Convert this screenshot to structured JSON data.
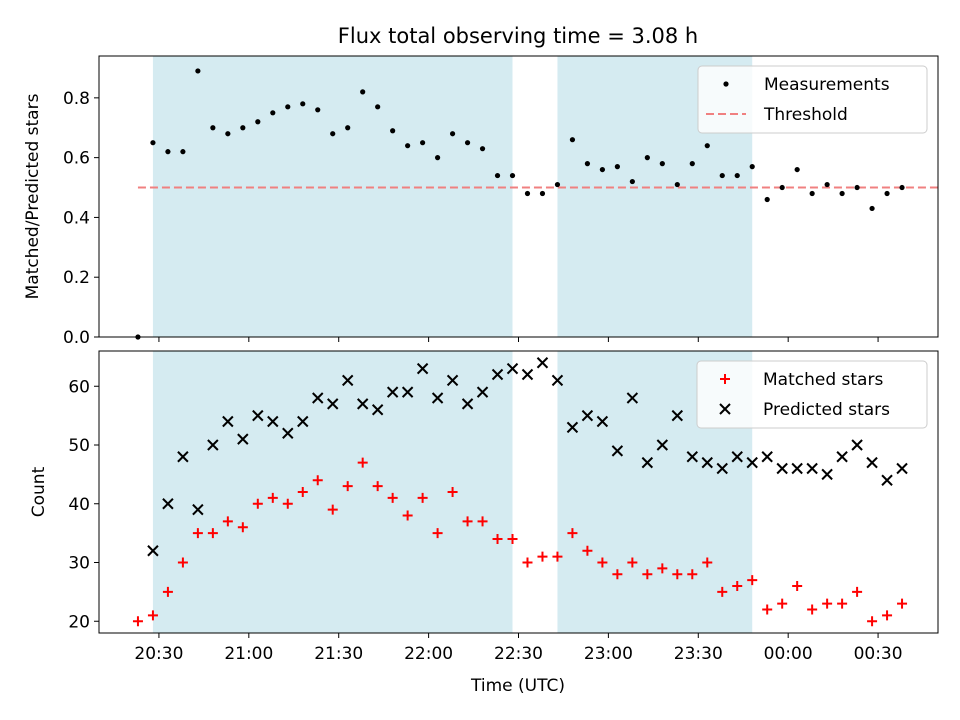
{
  "title": "Flux total observing time = 3.08 h",
  "xlabel": "Time (UTC)",
  "x_ticks": [
    "20:30",
    "21:00",
    "21:30",
    "22:00",
    "22:30",
    "23:00",
    "23:30",
    "00:00",
    "00:30"
  ],
  "colors": {
    "shade": "#d5ebf1",
    "threshold": "#f08080",
    "matched": "#ff0000",
    "predicted": "#000000",
    "points": "#000000"
  },
  "chart_data": [
    {
      "type": "scatter",
      "ylabel": "Matched/Predicted stars",
      "ylim": [
        0,
        0.94
      ],
      "yticks": [
        "0.0",
        "0.2",
        "0.4",
        "0.6",
        "0.8"
      ],
      "xlim": [
        "20:10",
        "24:50"
      ],
      "shaded_intervals": [
        [
          "20:28",
          "22:28"
        ],
        [
          "22:43",
          "23:48"
        ]
      ],
      "threshold": 0.5,
      "legend": {
        "position": "top-right",
        "entries": [
          "Measurements",
          "Threshold"
        ]
      },
      "series": [
        {
          "name": "Measurements",
          "x": [
            "20:23",
            "20:28",
            "20:33",
            "20:38",
            "20:43",
            "20:48",
            "20:53",
            "20:58",
            "21:03",
            "21:08",
            "21:13",
            "21:18",
            "21:23",
            "21:28",
            "21:33",
            "21:38",
            "21:43",
            "21:48",
            "21:53",
            "21:58",
            "22:03",
            "22:08",
            "22:13",
            "22:18",
            "22:23",
            "22:28",
            "22:33",
            "22:38",
            "22:43",
            "22:48",
            "22:53",
            "22:58",
            "23:03",
            "23:08",
            "23:13",
            "23:18",
            "23:23",
            "23:28",
            "23:33",
            "23:38",
            "23:43",
            "23:48",
            "23:53",
            "23:58",
            "24:03",
            "24:08",
            "24:13",
            "24:18",
            "24:23",
            "24:28",
            "24:33",
            "24:38"
          ],
          "y": [
            0.0,
            0.65,
            0.62,
            0.62,
            0.89,
            0.7,
            0.68,
            0.7,
            0.72,
            0.75,
            0.77,
            0.78,
            0.76,
            0.68,
            0.7,
            0.82,
            0.77,
            0.69,
            0.64,
            0.65,
            0.6,
            0.68,
            0.65,
            0.63,
            0.54,
            0.54,
            0.48,
            0.48,
            0.51,
            0.66,
            0.58,
            0.56,
            0.57,
            0.52,
            0.6,
            0.58,
            0.51,
            0.58,
            0.64,
            0.54,
            0.54,
            0.57,
            0.46,
            0.5,
            0.56,
            0.48,
            0.51,
            0.48,
            0.5,
            0.43,
            0.48,
            0.5
          ]
        }
      ]
    },
    {
      "type": "scatter",
      "ylabel": "Count",
      "ylim": [
        18,
        66
      ],
      "yticks": [
        "20",
        "30",
        "40",
        "50",
        "60"
      ],
      "xlim": [
        "20:10",
        "24:50"
      ],
      "shaded_intervals": [
        [
          "20:28",
          "22:28"
        ],
        [
          "22:43",
          "23:48"
        ]
      ],
      "legend": {
        "position": "top-right",
        "entries": [
          "Matched stars",
          "Predicted stars"
        ]
      },
      "series": [
        {
          "name": "Matched stars",
          "marker": "+",
          "x": [
            "20:23",
            "20:28",
            "20:33",
            "20:38",
            "20:43",
            "20:48",
            "20:53",
            "20:58",
            "21:03",
            "21:08",
            "21:13",
            "21:18",
            "21:23",
            "21:28",
            "21:33",
            "21:38",
            "21:43",
            "21:48",
            "21:53",
            "21:58",
            "22:03",
            "22:08",
            "22:13",
            "22:18",
            "22:23",
            "22:28",
            "22:33",
            "22:38",
            "22:43",
            "22:48",
            "22:53",
            "22:58",
            "23:03",
            "23:08",
            "23:13",
            "23:18",
            "23:23",
            "23:28",
            "23:33",
            "23:38",
            "23:43",
            "23:48",
            "23:53",
            "23:58",
            "24:03",
            "24:08",
            "24:13",
            "24:18",
            "24:23",
            "24:28",
            "24:33",
            "24:38"
          ],
          "y": [
            20,
            21,
            25,
            30,
            35,
            35,
            37,
            36,
            40,
            41,
            40,
            42,
            44,
            39,
            43,
            47,
            43,
            41,
            38,
            41,
            35,
            42,
            37,
            37,
            34,
            34,
            30,
            31,
            31,
            35,
            32,
            30,
            28,
            30,
            28,
            29,
            28,
            28,
            30,
            25,
            26,
            27,
            22,
            23,
            26,
            22,
            23,
            23,
            25,
            20,
            21,
            23
          ]
        },
        {
          "name": "Predicted stars",
          "marker": "x",
          "x": [
            "20:28",
            "20:33",
            "20:38",
            "20:43",
            "20:48",
            "20:53",
            "20:58",
            "21:03",
            "21:08",
            "21:13",
            "21:18",
            "21:23",
            "21:28",
            "21:33",
            "21:38",
            "21:43",
            "21:48",
            "21:53",
            "21:58",
            "22:03",
            "22:08",
            "22:13",
            "22:18",
            "22:23",
            "22:28",
            "22:33",
            "22:38",
            "22:43",
            "22:48",
            "22:53",
            "22:58",
            "23:03",
            "23:08",
            "23:13",
            "23:18",
            "23:23",
            "23:28",
            "23:33",
            "23:38",
            "23:43",
            "23:48",
            "23:53",
            "23:58",
            "24:03",
            "24:08",
            "24:13",
            "24:18",
            "24:23",
            "24:28",
            "24:33",
            "24:38"
          ],
          "y": [
            32,
            40,
            48,
            39,
            50,
            54,
            51,
            55,
            54,
            52,
            54,
            58,
            57,
            61,
            57,
            56,
            59,
            59,
            63,
            58,
            61,
            57,
            59,
            62,
            63,
            62,
            64,
            61,
            53,
            55,
            54,
            49,
            58,
            47,
            50,
            55,
            48,
            47,
            46,
            48,
            47,
            48,
            46,
            46,
            46,
            45,
            48,
            50,
            47,
            44,
            46
          ]
        }
      ]
    }
  ]
}
